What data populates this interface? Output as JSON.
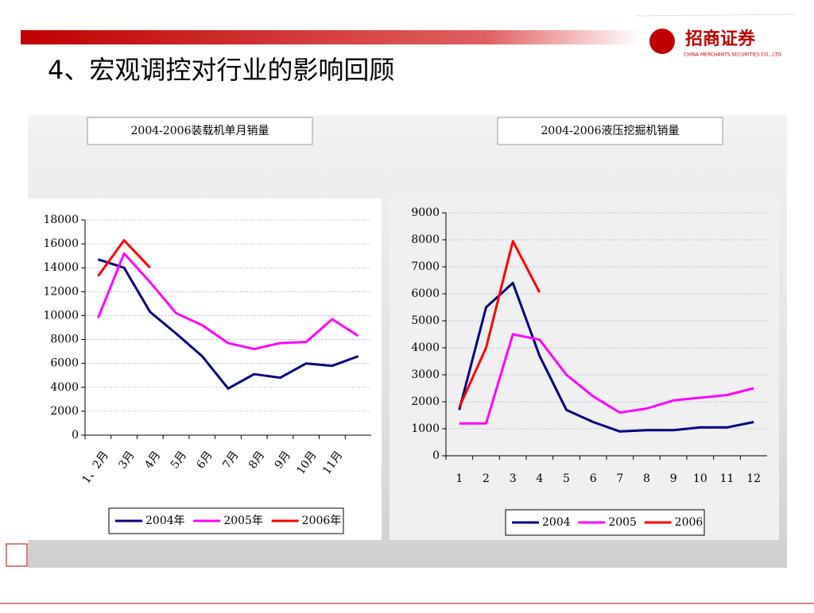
{
  "title": "4、宏观调控对行业的影响回顾",
  "logo": {
    "name": "招商证券",
    "sub": "CHINA MERCHANTS SECURITIES CO., LTD."
  },
  "chart_data": [
    {
      "type": "line",
      "title": "2004-2006装载机单月销量",
      "categories": [
        "1、2月",
        "3月",
        "4月",
        "5月",
        "6月",
        "7月",
        "8月",
        "9月",
        "10月",
        "11月",
        null
      ],
      "series": [
        {
          "name": "2004年",
          "color": "#000080",
          "values": [
            14700,
            14000,
            10300,
            8500,
            6600,
            3900,
            5100,
            4800,
            6000,
            5800,
            6600
          ]
        },
        {
          "name": "2005年",
          "color": "#ff00ff",
          "values": [
            9800,
            15200,
            12800,
            10200,
            9200,
            7700,
            7200,
            7700,
            7800,
            9700,
            8300
          ]
        },
        {
          "name": "2006年",
          "color": "#ff0000",
          "values": [
            13300,
            16300,
            14000,
            null,
            null,
            null,
            null,
            null,
            null,
            null,
            null
          ]
        }
      ],
      "ylim": [
        0,
        18000
      ],
      "yticks": [
        0,
        2000,
        4000,
        6000,
        8000,
        10000,
        12000,
        14000,
        16000,
        18000
      ],
      "grid": true,
      "legend": "bottom"
    },
    {
      "type": "line",
      "title": "2004-2006液压挖掘机销量",
      "categories": [
        "1",
        "2",
        "3",
        "4",
        "5",
        "6",
        "7",
        "8",
        "9",
        "10",
        "11",
        "12"
      ],
      "series": [
        {
          "name": "2004",
          "color": "#000080",
          "values": [
            1700,
            5500,
            6400,
            3700,
            1700,
            1250,
            900,
            950,
            950,
            1050,
            1050,
            1250
          ]
        },
        {
          "name": "2005",
          "color": "#ff00ff",
          "values": [
            1200,
            1200,
            4500,
            4300,
            3000,
            2200,
            1600,
            1750,
            2050,
            2150,
            2250,
            2500
          ]
        },
        {
          "name": "2006",
          "color": "#ff0000",
          "values": [
            1800,
            4000,
            7950,
            6050,
            null,
            null,
            null,
            null,
            null,
            null,
            null,
            null
          ]
        }
      ],
      "ylim": [
        0,
        9000
      ],
      "yticks": [
        0,
        1000,
        2000,
        3000,
        4000,
        5000,
        6000,
        7000,
        8000,
        9000
      ],
      "grid": true,
      "legend": "bottom"
    }
  ]
}
